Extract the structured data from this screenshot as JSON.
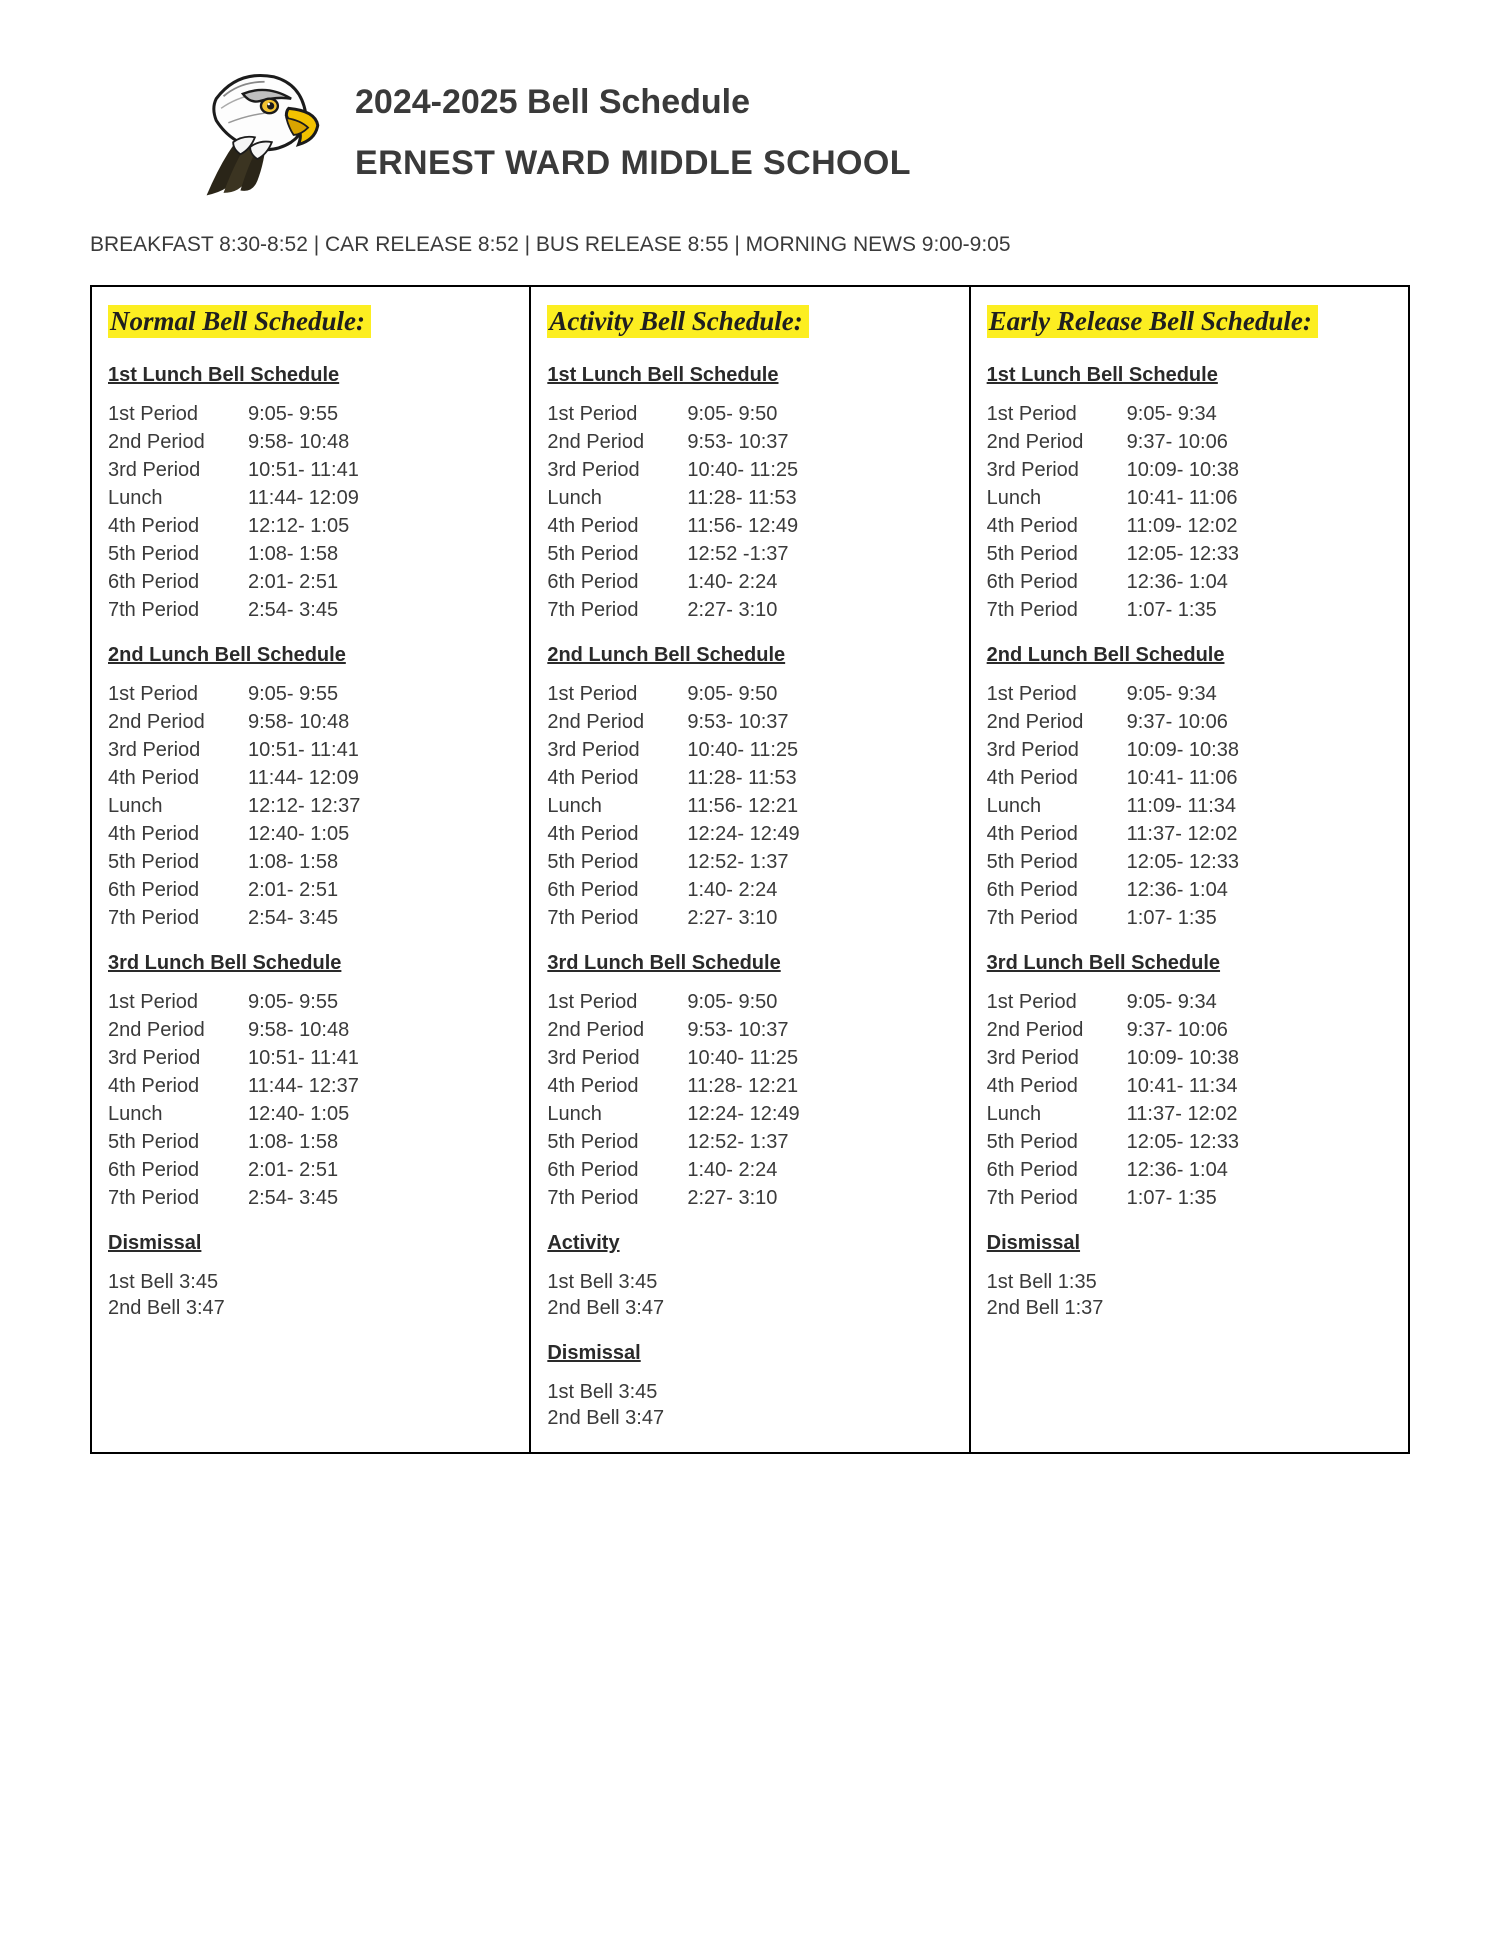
{
  "header": {
    "title": "2024-2025 Bell Schedule",
    "school": "ERNEST  WARD MIDDLE SCHOOL",
    "info_line": "BREAKFAST 8:30-8:52 | CAR RELEASE 8:52 | BUS RELEASE 8:55 | MORNING NEWS 9:00-9:05"
  },
  "colors": {
    "highlight": "#fcee21",
    "border": "#000000",
    "text": "#3a3a3a",
    "background": "#ffffff"
  },
  "columns": [
    {
      "title": "Normal Bell Schedule:",
      "sections": [
        {
          "heading": "1st Lunch Bell Schedule",
          "rows": [
            {
              "label": "1st Period",
              "time": "9:05- 9:55"
            },
            {
              "label": "2nd Period",
              "time": "9:58- 10:48"
            },
            {
              "label": "3rd Period",
              "time": "10:51- 11:41"
            },
            {
              "label": "Lunch",
              "time": "11:44- 12:09"
            },
            {
              "label": "4th Period",
              "time": "12:12- 1:05"
            },
            {
              "label": "5th Period",
              "time": "1:08- 1:58"
            },
            {
              "label": "6th Period",
              "time": "2:01- 2:51"
            },
            {
              "label": "7th Period",
              "time": "2:54- 3:45"
            }
          ]
        },
        {
          "heading": "2nd Lunch Bell Schedule",
          "rows": [
            {
              "label": "1st Period",
              "time": "9:05- 9:55"
            },
            {
              "label": "2nd Period",
              "time": "9:58- 10:48"
            },
            {
              "label": "3rd Period",
              "time": "10:51- 11:41"
            },
            {
              "label": "4th Period",
              "time": "11:44- 12:09"
            },
            {
              "label": "Lunch",
              "time": "12:12- 12:37"
            },
            {
              "label": "4th Period",
              "time": "12:40- 1:05"
            },
            {
              "label": "5th Period",
              "time": "1:08- 1:58"
            },
            {
              "label": "6th Period",
              "time": "2:01- 2:51"
            },
            {
              "label": "7th Period",
              "time": "2:54- 3:45"
            }
          ]
        },
        {
          "heading": "3rd Lunch Bell Schedule",
          "rows": [
            {
              "label": "1st Period",
              "time": "9:05- 9:55"
            },
            {
              "label": "2nd Period",
              "time": "9:58- 10:48"
            },
            {
              "label": "3rd Period",
              "time": "10:51- 11:41"
            },
            {
              "label": "4th Period",
              "time": "11:44- 12:37"
            },
            {
              "label": "Lunch",
              "time": "12:40- 1:05"
            },
            {
              "label": "5th Period",
              "time": "1:08- 1:58"
            },
            {
              "label": "6th Period",
              "time": "2:01- 2:51"
            },
            {
              "label": "7th Period",
              "time": "2:54- 3:45"
            }
          ]
        }
      ],
      "footers": [
        {
          "heading": "Dismissal",
          "lines": [
            "1st Bell 3:45",
            "2nd Bell 3:47"
          ]
        }
      ]
    },
    {
      "title": "Activity Bell Schedule:",
      "sections": [
        {
          "heading": "1st Lunch Bell Schedule",
          "rows": [
            {
              "label": "1st Period",
              "time": "9:05- 9:50"
            },
            {
              "label": "2nd Period",
              "time": "9:53- 10:37"
            },
            {
              "label": "3rd Period",
              "time": "10:40- 11:25"
            },
            {
              "label": "Lunch",
              "time": "11:28- 11:53"
            },
            {
              "label": "4th Period",
              "time": "11:56- 12:49"
            },
            {
              "label": "5th Period",
              "time": "12:52 -1:37"
            },
            {
              "label": "6th Period",
              "time": "1:40- 2:24"
            },
            {
              "label": "7th Period",
              "time": "2:27- 3:10"
            }
          ]
        },
        {
          "heading": "2nd Lunch Bell Schedule",
          "rows": [
            {
              "label": "1st Period",
              "time": "9:05- 9:50"
            },
            {
              "label": "2nd Period",
              "time": "9:53- 10:37"
            },
            {
              "label": "3rd Period",
              "time": "10:40- 11:25"
            },
            {
              "label": "4th Period",
              "time": "11:28- 11:53"
            },
            {
              "label": "Lunch",
              "time": "11:56- 12:21"
            },
            {
              "label": "4th Period",
              "time": "12:24- 12:49"
            },
            {
              "label": "5th Period",
              "time": "12:52- 1:37"
            },
            {
              "label": "6th Period",
              "time": "1:40- 2:24"
            },
            {
              "label": "7th Period",
              "time": "2:27- 3:10"
            }
          ]
        },
        {
          "heading": "3rd Lunch Bell Schedule",
          "rows": [
            {
              "label": "1st Period",
              "time": "9:05- 9:50"
            },
            {
              "label": "2nd Period",
              "time": "9:53- 10:37"
            },
            {
              "label": "3rd Period",
              "time": "10:40- 11:25"
            },
            {
              "label": "4th Period",
              "time": "11:28- 12:21"
            },
            {
              "label": "Lunch",
              "time": "12:24- 12:49"
            },
            {
              "label": "5th Period",
              "time": "12:52- 1:37"
            },
            {
              "label": "6th Period",
              "time": "1:40- 2:24"
            },
            {
              "label": "7th Period",
              "time": "2:27- 3:10"
            }
          ]
        }
      ],
      "footers": [
        {
          "heading": "Activity",
          "lines": [
            "1st Bell 3:45",
            "2nd Bell 3:47"
          ]
        },
        {
          "heading": "Dismissal",
          "lines": [
            "1st Bell 3:45",
            "2nd Bell 3:47"
          ]
        }
      ]
    },
    {
      "title": "Early Release Bell Schedule:",
      "sections": [
        {
          "heading": "1st Lunch Bell Schedule",
          "rows": [
            {
              "label": "1st Period",
              "time": "9:05- 9:34"
            },
            {
              "label": "2nd Period",
              "time": "9:37- 10:06"
            },
            {
              "label": "3rd Period",
              "time": "10:09- 10:38"
            },
            {
              "label": "Lunch",
              "time": "10:41- 11:06"
            },
            {
              "label": "4th Period",
              "time": "11:09- 12:02"
            },
            {
              "label": "5th Period",
              "time": "12:05- 12:33"
            },
            {
              "label": "6th Period",
              "time": "12:36- 1:04"
            },
            {
              "label": "7th Period",
              "time": "1:07- 1:35"
            }
          ]
        },
        {
          "heading": "2nd Lunch Bell Schedule",
          "rows": [
            {
              "label": "1st Period",
              "time": "9:05- 9:34"
            },
            {
              "label": "2nd Period",
              "time": "9:37- 10:06"
            },
            {
              "label": "3rd Period",
              "time": "10:09- 10:38"
            },
            {
              "label": "4th Period",
              "time": "10:41- 11:06"
            },
            {
              "label": "Lunch",
              "time": "11:09- 11:34"
            },
            {
              "label": "4th Period",
              "time": "11:37- 12:02"
            },
            {
              "label": "5th Period",
              "time": "12:05- 12:33"
            },
            {
              "label": "6th Period",
              "time": "12:36- 1:04"
            },
            {
              "label": "7th Period",
              "time": "1:07- 1:35"
            }
          ]
        },
        {
          "heading": "3rd Lunch Bell Schedule",
          "rows": [
            {
              "label": "1st Period",
              "time": "9:05- 9:34"
            },
            {
              "label": "2nd Period",
              "time": "9:37- 10:06"
            },
            {
              "label": "3rd Period",
              "time": "10:09- 10:38"
            },
            {
              "label": "4th Period",
              "time": "10:41- 11:34"
            },
            {
              "label": "Lunch",
              "time": "11:37- 12:02"
            },
            {
              "label": "5th Period",
              "time": "12:05- 12:33"
            },
            {
              "label": "6th Period",
              "time": "12:36- 1:04"
            },
            {
              "label": "7th Period",
              "time": "1:07- 1:35"
            }
          ]
        }
      ],
      "footers": [
        {
          "heading": "Dismissal",
          "lines": [
            "1st Bell 1:35",
            "2nd Bell 1:37"
          ]
        }
      ]
    }
  ]
}
